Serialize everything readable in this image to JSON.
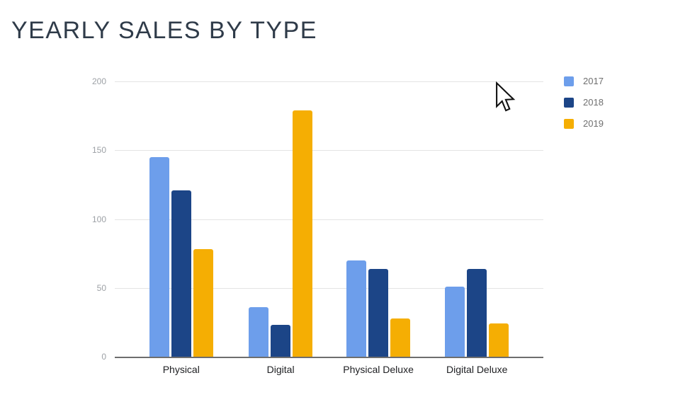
{
  "title": "YEARLY SALES BY TYPE",
  "chart_data": {
    "type": "bar",
    "title": "YEARLY SALES BY TYPE",
    "categories": [
      "Physical",
      "Digital",
      "Physical Deluxe",
      "Digital Deluxe"
    ],
    "series": [
      {
        "name": "2017",
        "color": "#6D9EEB",
        "values": [
          145,
          36,
          70,
          51
        ]
      },
      {
        "name": "2018",
        "color": "#1C4587",
        "values": [
          121,
          23,
          64,
          64
        ]
      },
      {
        "name": "2019",
        "color": "#F5AE03",
        "values": [
          78,
          179,
          28,
          24
        ]
      }
    ],
    "xlabel": "",
    "ylabel": "",
    "ylim": [
      0,
      200
    ],
    "yticks": [
      0,
      50,
      100,
      150,
      200
    ],
    "grid": true,
    "legend_position": "right",
    "group_center_pct": [
      15.5,
      38.7,
      61.5,
      84.5
    ]
  },
  "colors": {
    "background": "#FFFFFF",
    "title_text": "#2F3B49",
    "gridline": "#E4E4E4",
    "axis_line": "#6E6E6E",
    "ytick_label": "#9DA1A6",
    "category_label": "#202124",
    "legend_label": "#6F6F6F"
  },
  "icons": {
    "cursor": "mouse-arrow-cursor"
  }
}
